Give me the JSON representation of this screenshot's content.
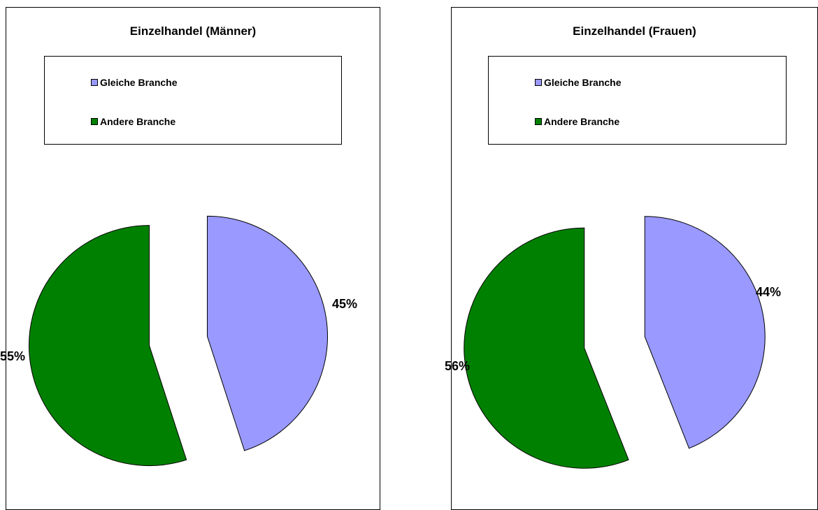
{
  "chart_data": [
    {
      "type": "pie",
      "title": "Einzelhandel (Männer)",
      "categories": [
        "Gleiche Branche",
        "Andere Branche"
      ],
      "values": [
        45,
        55
      ],
      "labels": [
        "45%",
        "55%"
      ],
      "colors": [
        "#9999ff",
        "#008000"
      ],
      "legend_position": "top"
    },
    {
      "type": "pie",
      "title": "Einzelhandel (Frauen)",
      "categories": [
        "Gleiche Branche",
        "Andere Branche"
      ],
      "values": [
        44,
        56
      ],
      "labels": [
        "44%",
        "56%"
      ],
      "colors": [
        "#9999ff",
        "#008000"
      ],
      "legend_position": "top"
    }
  ]
}
